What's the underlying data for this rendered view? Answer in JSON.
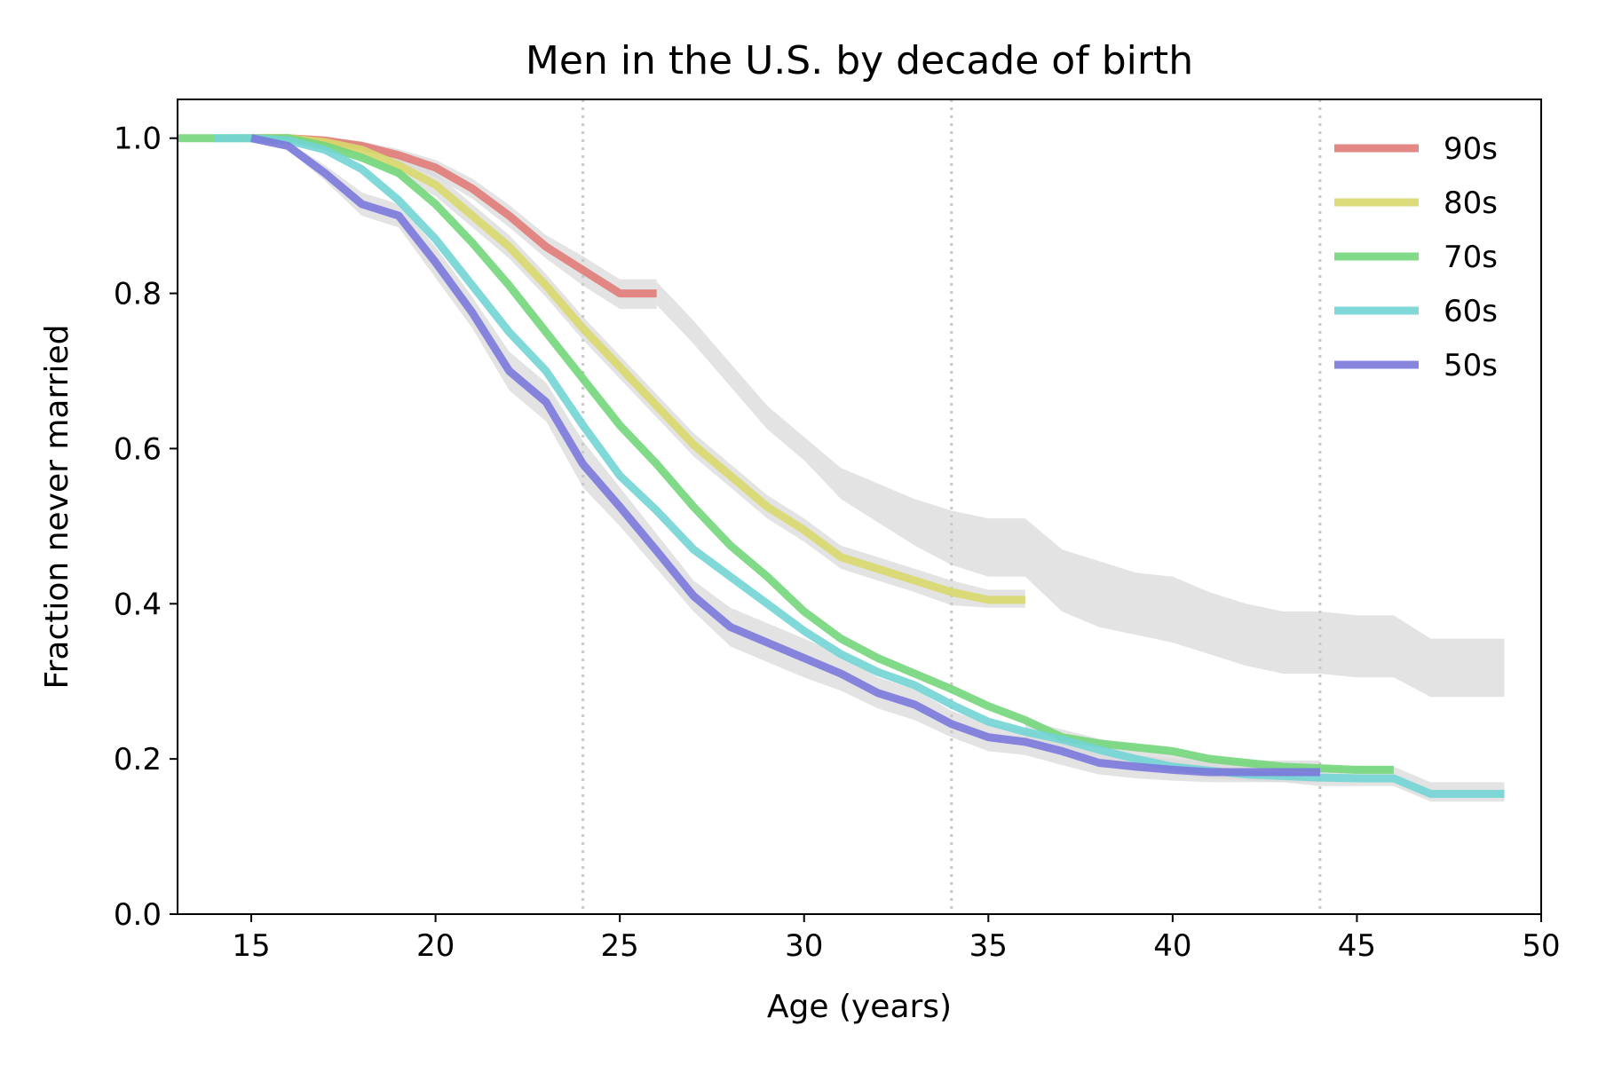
{
  "chart_data": {
    "type": "line",
    "title": "Men in the U.S. by decade of birth",
    "xlabel": "Age (years)",
    "ylabel": "Fraction never married",
    "xlim": [
      13,
      50
    ],
    "ylim": [
      0,
      1.05
    ],
    "xticks": [
      15,
      20,
      25,
      30,
      35,
      40,
      45,
      50
    ],
    "yticks": [
      0.0,
      0.2,
      0.4,
      0.6,
      0.8,
      1.0
    ],
    "grid": false,
    "vlines": [
      24,
      34,
      44
    ],
    "legend_position": "top-right",
    "series": [
      {
        "name": "90s",
        "color": "#e07b78",
        "x": [
          15,
          16,
          17,
          18,
          19,
          20,
          21,
          22,
          23,
          24,
          25,
          26
        ],
        "y": [
          1.0,
          1.0,
          0.997,
          0.99,
          0.978,
          0.962,
          0.935,
          0.9,
          0.86,
          0.83,
          0.8,
          0.8
        ]
      },
      {
        "name": "80s",
        "color": "#d8d86c",
        "x": [
          15,
          16,
          17,
          18,
          19,
          20,
          21,
          22,
          23,
          24,
          25,
          26,
          27,
          28,
          29,
          30,
          31,
          32,
          33,
          34,
          35,
          36
        ],
        "y": [
          1.0,
          1.0,
          0.995,
          0.985,
          0.965,
          0.94,
          0.9,
          0.86,
          0.81,
          0.755,
          0.705,
          0.655,
          0.605,
          0.565,
          0.525,
          0.495,
          0.46,
          0.445,
          0.43,
          0.415,
          0.405,
          0.405
        ]
      },
      {
        "name": "70s",
        "color": "#72d67a",
        "x": [
          13,
          14,
          15,
          16,
          17,
          18,
          19,
          20,
          21,
          22,
          23,
          24,
          25,
          26,
          27,
          28,
          29,
          30,
          31,
          32,
          33,
          34,
          35,
          36,
          37,
          38,
          39,
          40,
          41,
          42,
          43,
          44,
          45,
          46
        ],
        "y": [
          1.0,
          1.0,
          1.0,
          1.0,
          0.99,
          0.975,
          0.955,
          0.915,
          0.865,
          0.81,
          0.75,
          0.69,
          0.63,
          0.58,
          0.525,
          0.475,
          0.435,
          0.39,
          0.355,
          0.33,
          0.31,
          0.29,
          0.268,
          0.25,
          0.228,
          0.22,
          0.215,
          0.21,
          0.2,
          0.195,
          0.19,
          0.188,
          0.186,
          0.186
        ]
      },
      {
        "name": "60s",
        "color": "#72d4d4",
        "x": [
          14,
          15,
          16,
          17,
          18,
          19,
          20,
          21,
          22,
          23,
          24,
          25,
          26,
          27,
          28,
          29,
          30,
          31,
          32,
          33,
          34,
          35,
          36,
          37,
          38,
          39,
          40,
          41,
          42,
          43,
          44,
          45,
          46,
          47,
          48,
          49
        ],
        "y": [
          1.0,
          1.0,
          0.997,
          0.985,
          0.96,
          0.92,
          0.87,
          0.81,
          0.75,
          0.7,
          0.63,
          0.565,
          0.52,
          0.47,
          0.435,
          0.4,
          0.365,
          0.335,
          0.312,
          0.295,
          0.27,
          0.248,
          0.235,
          0.225,
          0.212,
          0.2,
          0.19,
          0.185,
          0.18,
          0.178,
          0.176,
          0.175,
          0.175,
          0.155,
          0.155,
          0.155
        ]
      },
      {
        "name": "50s",
        "color": "#7b78dc",
        "x": [
          15,
          16,
          17,
          18,
          19,
          20,
          21,
          22,
          23,
          24,
          25,
          26,
          27,
          28,
          29,
          30,
          31,
          32,
          33,
          34,
          35,
          36,
          37,
          38,
          39,
          40,
          41,
          42,
          43,
          44
        ],
        "y": [
          1.0,
          0.99,
          0.955,
          0.915,
          0.9,
          0.84,
          0.775,
          0.7,
          0.66,
          0.58,
          0.525,
          0.468,
          0.41,
          0.37,
          0.35,
          0.33,
          0.31,
          0.285,
          0.27,
          0.245,
          0.228,
          0.222,
          0.21,
          0.195,
          0.19,
          0.186,
          0.183,
          0.183,
          0.183,
          0.183
        ]
      }
    ],
    "bands": [
      {
        "color": "#d9d9d9",
        "x": [
          15,
          16,
          17,
          18,
          19,
          20,
          21,
          22,
          23,
          24,
          25,
          26
        ],
        "low": [
          1.0,
          0.998,
          0.992,
          0.982,
          0.968,
          0.95,
          0.922,
          0.885,
          0.845,
          0.81,
          0.78,
          0.78
        ],
        "high": [
          1.0,
          1.0,
          1.0,
          0.996,
          0.986,
          0.972,
          0.948,
          0.914,
          0.875,
          0.848,
          0.818,
          0.818
        ]
      },
      {
        "color": "#d9d9d9",
        "x": [
          26,
          27,
          28,
          29,
          30,
          31,
          32,
          33,
          34,
          35,
          36,
          37,
          38,
          39,
          40,
          41,
          42,
          43,
          44,
          45,
          46,
          47,
          48,
          49
        ],
        "low": [
          0.785,
          0.735,
          0.68,
          0.625,
          0.585,
          0.535,
          0.505,
          0.475,
          0.45,
          0.435,
          0.435,
          0.39,
          0.37,
          0.36,
          0.35,
          0.335,
          0.32,
          0.31,
          0.31,
          0.305,
          0.305,
          0.28,
          0.28,
          0.28
        ],
        "high": [
          0.815,
          0.765,
          0.71,
          0.655,
          0.615,
          0.575,
          0.555,
          0.535,
          0.52,
          0.51,
          0.51,
          0.47,
          0.455,
          0.44,
          0.435,
          0.415,
          0.4,
          0.39,
          0.39,
          0.385,
          0.385,
          0.355,
          0.355,
          0.355
        ]
      },
      {
        "color": "#d9d9d9",
        "x": [
          15,
          16,
          17,
          18,
          19,
          20,
          21,
          22,
          23,
          24,
          25,
          26,
          27,
          28,
          29,
          30,
          31,
          32,
          33,
          34,
          35,
          36
        ],
        "low": [
          1.0,
          0.995,
          0.988,
          0.975,
          0.952,
          0.925,
          0.885,
          0.845,
          0.795,
          0.74,
          0.69,
          0.64,
          0.59,
          0.55,
          0.51,
          0.48,
          0.445,
          0.43,
          0.415,
          0.398,
          0.395,
          0.395
        ],
        "high": [
          1.0,
          1.0,
          1.0,
          0.995,
          0.978,
          0.955,
          0.915,
          0.875,
          0.825,
          0.77,
          0.72,
          0.67,
          0.62,
          0.58,
          0.54,
          0.51,
          0.475,
          0.46,
          0.445,
          0.43,
          0.418,
          0.418
        ]
      },
      {
        "color": "#d9d9d9",
        "x": [
          15,
          16,
          17,
          18,
          19,
          20,
          21,
          22,
          23,
          24,
          25,
          26,
          27,
          28,
          29,
          30,
          31,
          32,
          33,
          34,
          35,
          36,
          37,
          38,
          39,
          40,
          41,
          42,
          43,
          44
        ],
        "low": [
          1.0,
          0.985,
          0.945,
          0.9,
          0.885,
          0.82,
          0.755,
          0.675,
          0.635,
          0.55,
          0.5,
          0.445,
          0.39,
          0.345,
          0.325,
          0.305,
          0.288,
          0.265,
          0.25,
          0.228,
          0.21,
          0.205,
          0.192,
          0.18,
          0.175,
          0.172,
          0.17,
          0.17,
          0.17,
          0.17
        ],
        "high": [
          1.0,
          0.995,
          0.965,
          0.93,
          0.915,
          0.86,
          0.795,
          0.725,
          0.685,
          0.61,
          0.55,
          0.49,
          0.43,
          0.395,
          0.375,
          0.355,
          0.335,
          0.305,
          0.29,
          0.262,
          0.245,
          0.238,
          0.225,
          0.21,
          0.205,
          0.2,
          0.198,
          0.198,
          0.198,
          0.198
        ]
      },
      {
        "color": "#d9d9d9",
        "x": [
          36,
          37,
          38,
          39,
          40,
          41,
          42,
          43,
          44,
          45,
          46,
          47,
          48,
          49
        ],
        "low": [
          0.225,
          0.212,
          0.2,
          0.19,
          0.18,
          0.175,
          0.172,
          0.17,
          0.165,
          0.165,
          0.165,
          0.145,
          0.145,
          0.145
        ],
        "high": [
          0.25,
          0.238,
          0.226,
          0.216,
          0.206,
          0.2,
          0.197,
          0.195,
          0.19,
          0.19,
          0.19,
          0.17,
          0.17,
          0.17
        ]
      }
    ]
  }
}
